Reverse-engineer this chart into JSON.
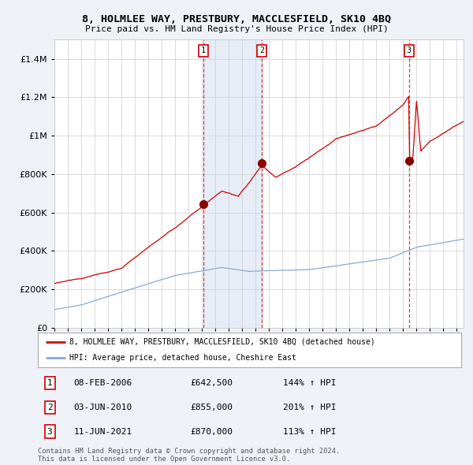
{
  "title": "8, HOLMLEE WAY, PRESTBURY, MACCLESFIELD, SK10 4BQ",
  "subtitle": "Price paid vs. HM Land Registry's House Price Index (HPI)",
  "ylim": [
    0,
    1500000
  ],
  "yticks": [
    0,
    200000,
    400000,
    600000,
    800000,
    1000000,
    1200000,
    1400000
  ],
  "ytick_labels": [
    "£0",
    "£200K",
    "£400K",
    "£600K",
    "£800K",
    "£1M",
    "£1.2M",
    "£1.4M"
  ],
  "xmin": 1995.0,
  "xmax": 2025.5,
  "background_color": "#eef2f7",
  "plot_bg_color": "#ffffff",
  "grid_color": "#cccccc",
  "legend_label_red": "8, HOLMLEE WAY, PRESTBURY, MACCLESFIELD, SK10 4BQ (detached house)",
  "legend_label_blue": "HPI: Average price, detached house, Cheshire East",
  "sale_dates": [
    2006.1,
    2010.45,
    2021.44
  ],
  "sale_prices": [
    642500,
    855000,
    870000
  ],
  "sale_labels": [
    "1",
    "2",
    "3"
  ],
  "sale_date_strs": [
    "08-FEB-2006",
    "03-JUN-2010",
    "11-JUN-2021"
  ],
  "sale_price_strs": [
    "£642,500",
    "£855,000",
    "£870,000"
  ],
  "sale_hpi_strs": [
    "144% ↑ HPI",
    "201% ↑ HPI",
    "113% ↑ HPI"
  ],
  "highlight_start": 2006.1,
  "highlight_end": 2010.45,
  "copyright_text": "Contains HM Land Registry data © Crown copyright and database right 2024.\nThis data is licensed under the Open Government Licence v3.0.",
  "red_color": "#cc0000",
  "blue_color": "#88aacc",
  "marker_color": "#880000"
}
